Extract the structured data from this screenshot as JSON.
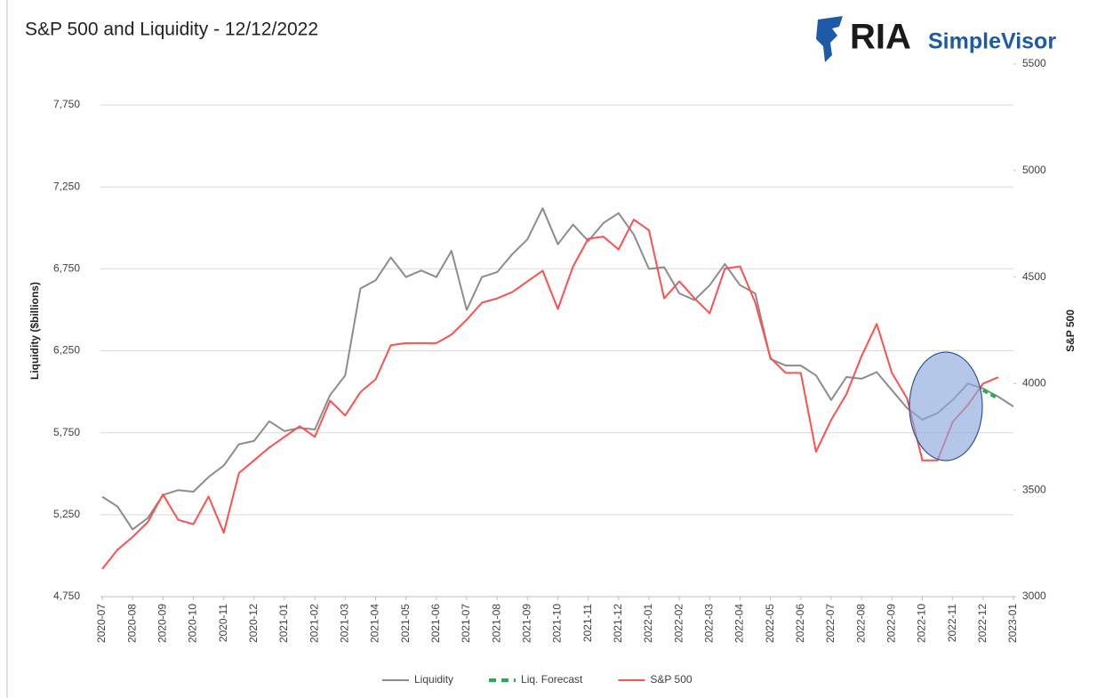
{
  "logo": {
    "brand": "RIA",
    "product": "SimpleVisor"
  },
  "chart_data": {
    "type": "line",
    "title": "S&P 500 and Liquidity - 12/12/2022",
    "ylabel": "Liquidity ($billions)",
    "y2label": "S&P 500",
    "categories": [
      "2020-07",
      null,
      "2020-08",
      null,
      "2020-09",
      null,
      "2020-10",
      null,
      "2020-11",
      null,
      "2020-12",
      null,
      "2021-01",
      null,
      "2021-02",
      null,
      "2021-03",
      null,
      "2021-04",
      null,
      "2021-05",
      null,
      "2021-06",
      null,
      "2021-07",
      null,
      "2021-08",
      null,
      "2021-09",
      null,
      "2021-10",
      null,
      "2021-11",
      null,
      "2021-12",
      null,
      "2022-01",
      null,
      "2022-02",
      null,
      "2022-03",
      null,
      "2022-04",
      null,
      "2022-05",
      null,
      "2022-06",
      null,
      "2022-07",
      null,
      "2022-08",
      null,
      "2022-09",
      null,
      "2022-10",
      null,
      "2022-11",
      null,
      "2022-12",
      null,
      "2023-01"
    ],
    "series": [
      {
        "name": "Liquidity",
        "color": "#8c8c8c",
        "values": [
          5360,
          5300,
          5160,
          5230,
          5370,
          5400,
          5390,
          5480,
          5550,
          5680,
          5700,
          5820,
          5760,
          5780,
          5770,
          5980,
          6100,
          6630,
          6680,
          6820,
          6700,
          6740,
          6700,
          6860,
          6500,
          6700,
          6730,
          6840,
          6930,
          7120,
          6900,
          7020,
          6920,
          7030,
          7090,
          6960,
          6750,
          6760,
          6600,
          6560,
          6650,
          6780,
          6650,
          6600,
          6200,
          6160,
          6160,
          6100,
          5950,
          6090,
          6080,
          6120,
          6010,
          5900,
          5830,
          5870,
          5950,
          6050,
          6020,
          5970,
          5910
        ]
      },
      {
        "name": "Liq. Forecast",
        "color": "#22b14c",
        "dashed": true,
        "values": [
          null,
          null,
          null,
          null,
          null,
          null,
          null,
          null,
          null,
          null,
          null,
          null,
          null,
          null,
          null,
          null,
          null,
          null,
          null,
          null,
          null,
          null,
          null,
          null,
          null,
          null,
          null,
          null,
          null,
          null,
          null,
          null,
          null,
          null,
          null,
          null,
          null,
          null,
          null,
          null,
          null,
          null,
          null,
          null,
          null,
          null,
          null,
          null,
          null,
          null,
          null,
          null,
          null,
          null,
          null,
          null,
          null,
          null,
          6010,
          5960,
          null
        ]
      },
      {
        "name": "S&P 500",
        "color": "#ff5050",
        "axis": "y2",
        "values": [
          3130,
          3220,
          3280,
          3350,
          3480,
          3360,
          3340,
          3470,
          3300,
          3580,
          3640,
          3700,
          3750,
          3800,
          3750,
          3920,
          3850,
          3960,
          4020,
          4180,
          4190,
          4190,
          4190,
          4230,
          4300,
          4380,
          4400,
          4430,
          4480,
          4530,
          4350,
          4550,
          4680,
          4690,
          4630,
          4770,
          4720,
          4400,
          4480,
          4400,
          4330,
          4540,
          4550,
          4380,
          4120,
          4050,
          4050,
          3680,
          3830,
          3950,
          4130,
          4280,
          4050,
          3930,
          3640,
          3640,
          3820,
          3900,
          4000,
          4030,
          null
        ]
      }
    ],
    "ylim": [
      4750,
      8000
    ],
    "yticks": [
      {
        "value": 4750,
        "label": "4,750"
      },
      {
        "value": 5250,
        "label": "5,250"
      },
      {
        "value": 5750,
        "label": "5,750"
      },
      {
        "value": 6250,
        "label": "6,250"
      },
      {
        "value": 6750,
        "label": "6,750"
      },
      {
        "value": 7250,
        "label": "7,250"
      },
      {
        "value": 7750,
        "label": "7,750"
      }
    ],
    "y2lim": [
      3000,
      5500
    ],
    "y2ticks": [
      3000,
      3500,
      4000,
      4500,
      5000,
      5500
    ],
    "grid": true,
    "legend": "bottom"
  }
}
